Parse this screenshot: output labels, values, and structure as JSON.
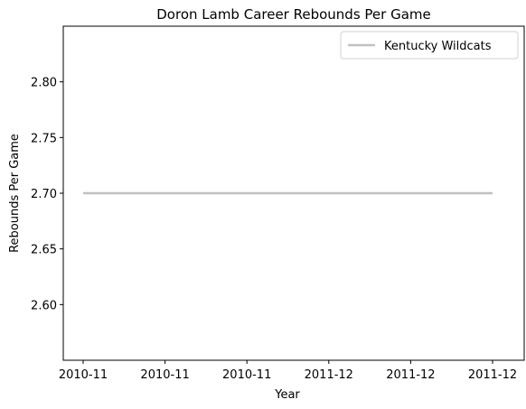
{
  "chart_data": {
    "type": "line",
    "title": "Doron Lamb Career Rebounds Per Game",
    "xlabel": "Year",
    "ylabel": "Rebounds Per Game",
    "x": [
      "2010-11",
      "2011-12"
    ],
    "x_tick_labels": [
      "2010-11",
      "2010-11",
      "2010-11",
      "2011-12",
      "2011-12",
      "2011-12"
    ],
    "y_ticks": [
      2.6,
      2.65,
      2.7,
      2.75,
      2.8
    ],
    "y_tick_labels": [
      "2.60",
      "2.65",
      "2.70",
      "2.75",
      "2.80"
    ],
    "ylim": [
      2.55,
      2.85
    ],
    "grid": false,
    "legend_position": "top-right",
    "series": [
      {
        "name": "Kentucky Wildcats",
        "values": [
          2.7,
          2.7
        ],
        "color": "#c0c0c0"
      }
    ]
  }
}
